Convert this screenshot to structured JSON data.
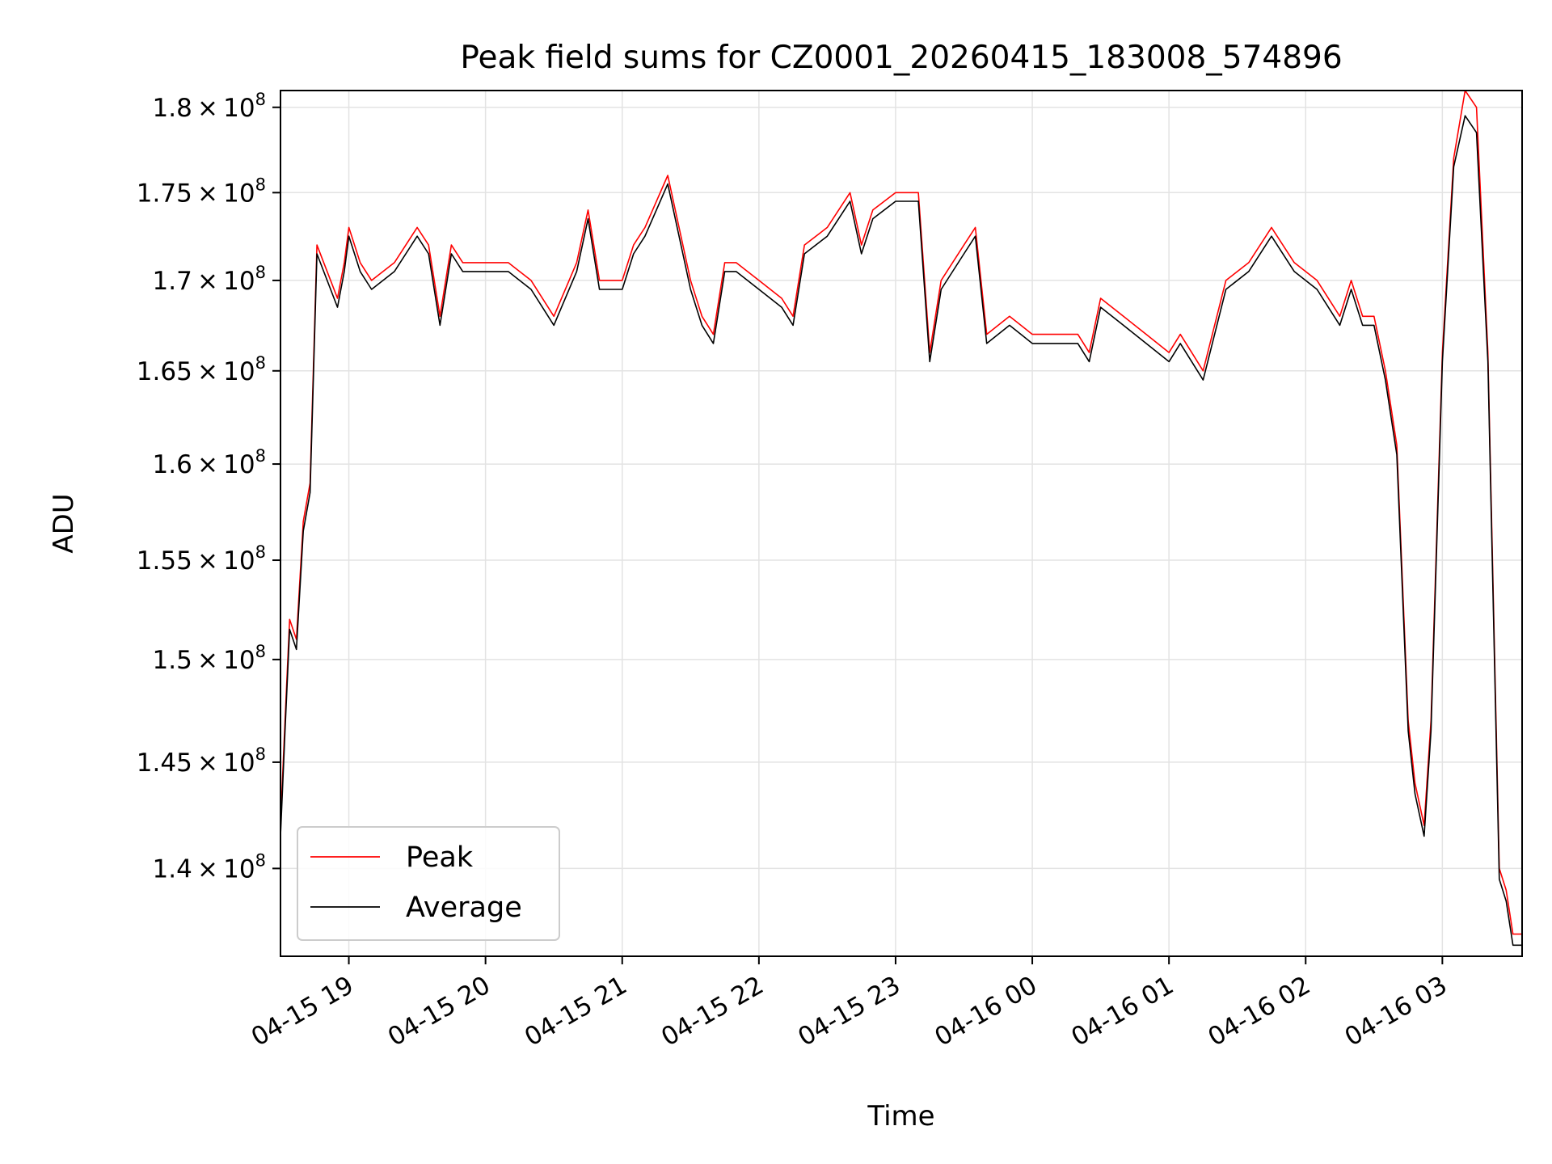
{
  "chart_data": {
    "type": "line",
    "title": "Peak field sums for CZ0001_20260415_183008_574896",
    "xlabel": "Time",
    "ylabel": "ADU",
    "x_axis_type": "datetime",
    "xlim": [
      "2026-04-15 18:30",
      "2026-04-16 03:35"
    ],
    "ylim": [
      136000000,
      181000000
    ],
    "y_scale": "log",
    "grid": true,
    "legend_position": "lower-left",
    "x_ticks": [
      "04-15 19",
      "04-15 20",
      "04-15 21",
      "04-15 22",
      "04-15 23",
      "04-16 00",
      "04-16 01",
      "04-16 02",
      "04-16 03"
    ],
    "y_ticks": [
      {
        "value": 140000000,
        "mantissa": "1.4",
        "exponent": "8"
      },
      {
        "value": 145000000,
        "mantissa": "1.45",
        "exponent": "8"
      },
      {
        "value": 150000000,
        "mantissa": "1.5",
        "exponent": "8"
      },
      {
        "value": 155000000,
        "mantissa": "1.55",
        "exponent": "8"
      },
      {
        "value": 160000000,
        "mantissa": "1.6",
        "exponent": "8"
      },
      {
        "value": 165000000,
        "mantissa": "1.65",
        "exponent": "8"
      },
      {
        "value": 170000000,
        "mantissa": "1.7",
        "exponent": "8"
      },
      {
        "value": 175000000,
        "mantissa": "1.75",
        "exponent": "8"
      },
      {
        "value": 180000000,
        "mantissa": "1.8",
        "exponent": "8"
      }
    ],
    "x": [
      "2026-04-15 18:30",
      "2026-04-15 18:32",
      "2026-04-15 18:34",
      "2026-04-15 18:37",
      "2026-04-15 18:40",
      "2026-04-15 18:43",
      "2026-04-15 18:46",
      "2026-04-15 18:49",
      "2026-04-15 18:52",
      "2026-04-15 18:55",
      "2026-04-15 18:58",
      "2026-04-15 19:00",
      "2026-04-15 19:05",
      "2026-04-15 19:10",
      "2026-04-15 19:20",
      "2026-04-15 19:30",
      "2026-04-15 19:35",
      "2026-04-15 19:40",
      "2026-04-15 19:45",
      "2026-04-15 19:50",
      "2026-04-15 20:00",
      "2026-04-15 20:10",
      "2026-04-15 20:20",
      "2026-04-15 20:30",
      "2026-04-15 20:40",
      "2026-04-15 20:45",
      "2026-04-15 20:50",
      "2026-04-15 21:00",
      "2026-04-15 21:05",
      "2026-04-15 21:10",
      "2026-04-15 21:20",
      "2026-04-15 21:30",
      "2026-04-15 21:35",
      "2026-04-15 21:40",
      "2026-04-15 21:45",
      "2026-04-15 21:50",
      "2026-04-15 22:00",
      "2026-04-15 22:10",
      "2026-04-15 22:15",
      "2026-04-15 22:20",
      "2026-04-15 22:30",
      "2026-04-15 22:40",
      "2026-04-15 22:45",
      "2026-04-15 22:50",
      "2026-04-15 23:00",
      "2026-04-15 23:10",
      "2026-04-15 23:15",
      "2026-04-15 23:20",
      "2026-04-15 23:30",
      "2026-04-15 23:35",
      "2026-04-15 23:40",
      "2026-04-15 23:50",
      "2026-04-16 00:00",
      "2026-04-16 00:10",
      "2026-04-16 00:20",
      "2026-04-16 00:25",
      "2026-04-16 00:30",
      "2026-04-16 00:40",
      "2026-04-16 00:50",
      "2026-04-16 01:00",
      "2026-04-16 01:05",
      "2026-04-16 01:10",
      "2026-04-16 01:15",
      "2026-04-16 01:25",
      "2026-04-16 01:35",
      "2026-04-16 01:45",
      "2026-04-16 01:55",
      "2026-04-16 02:05",
      "2026-04-16 02:15",
      "2026-04-16 02:20",
      "2026-04-16 02:25",
      "2026-04-16 02:30",
      "2026-04-16 02:35",
      "2026-04-16 02:40",
      "2026-04-16 02:45",
      "2026-04-16 02:48",
      "2026-04-16 02:52",
      "2026-04-16 02:55",
      "2026-04-16 03:00",
      "2026-04-16 03:05",
      "2026-04-16 03:10",
      "2026-04-16 03:15",
      "2026-04-16 03:20",
      "2026-04-16 03:25",
      "2026-04-16 03:28",
      "2026-04-16 03:31",
      "2026-04-16 03:35"
    ],
    "series": [
      {
        "name": "Peak",
        "color": "#ff0000",
        "values": [
          142,
          147,
          152,
          151,
          157,
          159,
          172,
          171,
          170,
          169,
          171,
          173,
          171,
          170,
          171,
          173,
          172,
          168,
          172,
          171,
          171,
          171,
          170,
          168,
          171,
          174,
          170,
          170,
          172,
          173,
          176,
          170,
          168,
          167,
          171,
          171,
          170,
          169,
          168,
          172,
          173,
          175,
          172,
          174,
          175,
          175,
          166,
          170,
          172,
          173,
          167,
          168,
          167,
          167,
          167,
          166,
          169,
          168,
          167,
          166,
          167,
          166,
          165,
          170,
          171,
          173,
          171,
          170,
          168,
          170,
          168,
          168,
          165,
          161,
          147,
          144,
          142,
          147,
          166,
          177,
          181,
          180,
          166,
          140,
          139,
          137,
          137
        ]
      },
      {
        "name": "Average",
        "color": "#000000",
        "values": [
          141.5,
          146.5,
          151.5,
          150.5,
          156.5,
          158.5,
          171.5,
          170.5,
          169.5,
          168.5,
          170.5,
          172.5,
          170.5,
          169.5,
          170.5,
          172.5,
          171.5,
          167.5,
          171.5,
          170.5,
          170.5,
          170.5,
          169.5,
          167.5,
          170.5,
          173.5,
          169.5,
          169.5,
          171.5,
          172.5,
          175.5,
          169.5,
          167.5,
          166.5,
          170.5,
          170.5,
          169.5,
          168.5,
          167.5,
          171.5,
          172.5,
          174.5,
          171.5,
          173.5,
          174.5,
          174.5,
          165.5,
          169.5,
          171.5,
          172.5,
          166.5,
          167.5,
          166.5,
          166.5,
          166.5,
          165.5,
          168.5,
          167.5,
          166.5,
          165.5,
          166.5,
          165.5,
          164.5,
          169.5,
          170.5,
          172.5,
          170.5,
          169.5,
          167.5,
          169.5,
          167.5,
          167.5,
          164.5,
          160.5,
          146.5,
          143.5,
          141.5,
          146.5,
          165.5,
          176.5,
          179.5,
          178.5,
          165.5,
          139.5,
          138.5,
          136.5,
          136.5
        ]
      }
    ],
    "value_unit_multiplier": 1000000
  }
}
